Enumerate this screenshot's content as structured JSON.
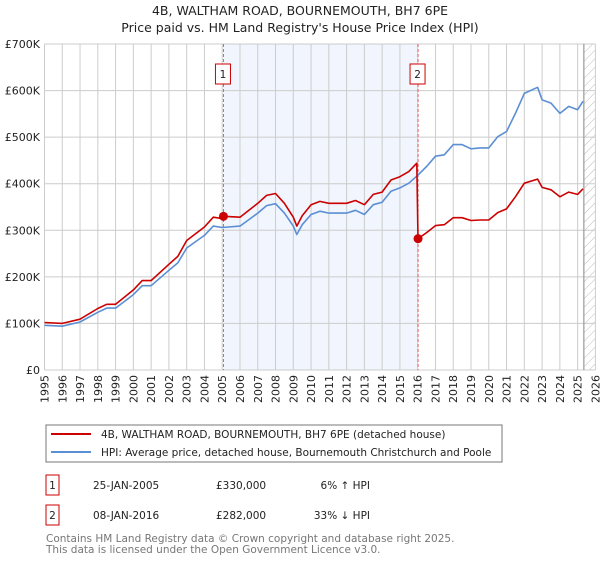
{
  "chart_data": {
    "type": "line",
    "title": "4B, WALTHAM ROAD, BOURNEMOUTH, BH7 6PE",
    "subtitle": "Price paid vs. HM Land Registry's House Price Index (HPI)",
    "xlim": [
      1995,
      2026
    ],
    "ylim": [
      0,
      700000
    ],
    "x_ticks": [
      "1995",
      "1996",
      "1997",
      "1998",
      "1999",
      "2000",
      "2001",
      "2002",
      "2003",
      "2004",
      "2005",
      "2006",
      "2007",
      "2008",
      "2009",
      "2010",
      "2011",
      "2012",
      "2013",
      "2014",
      "2015",
      "2016",
      "2017",
      "2018",
      "2019",
      "2020",
      "2021",
      "2022",
      "2023",
      "2024",
      "2025",
      "2026"
    ],
    "y_ticks": [
      {
        "value": 0,
        "label": "£0"
      },
      {
        "value": 100000,
        "label": "£100K"
      },
      {
        "value": 200000,
        "label": "£200K"
      },
      {
        "value": 300000,
        "label": "£300K"
      },
      {
        "value": 400000,
        "label": "£400K"
      },
      {
        "value": 500000,
        "label": "£500K"
      },
      {
        "value": 600000,
        "label": "£600K"
      },
      {
        "value": 700000,
        "label": "£700K"
      }
    ],
    "grid": true,
    "shaded_range": [
      2005.07,
      2016.02
    ],
    "forecast_hatch_from": 2025.35,
    "series": [
      {
        "name": "4B, WALTHAM ROAD, BOURNEMOUTH, BH7 6PE (detached house)",
        "color": "#cc0000",
        "x": [
          1995,
          1996,
          1997,
          1998,
          1998.5,
          1999,
          2000,
          2000.5,
          2001,
          2002,
          2002.5,
          2003,
          2004,
          2004.5,
          2005,
          2005.07,
          2006,
          2006.5,
          2007,
          2007.5,
          2008,
          2008.5,
          2009,
          2009.2,
          2009.5,
          2010,
          2010.5,
          2011,
          2012,
          2012.5,
          2013,
          2013.5,
          2014,
          2014.5,
          2015,
          2015.5,
          2015.95,
          2016.02,
          2016.5,
          2017,
          2017.5,
          2018,
          2018.5,
          2019,
          2019.5,
          2020,
          2020.5,
          2021,
          2021.5,
          2022,
          2022.75,
          2023,
          2023.5,
          2024,
          2024.5,
          2025,
          2025.3
        ],
        "y": [
          102000,
          100000,
          109000,
          132000,
          141000,
          141000,
          172000,
          192000,
          192000,
          227000,
          244000,
          278000,
          307000,
          328000,
          325000,
          330000,
          328000,
          343000,
          358000,
          375000,
          379000,
          358000,
          328000,
          309000,
          331000,
          355000,
          362000,
          358000,
          358000,
          364000,
          355000,
          377000,
          382000,
          408000,
          415000,
          426000,
          444000,
          282000,
          295000,
          310000,
          312000,
          327000,
          327000,
          321000,
          322000,
          322000,
          338000,
          346000,
          372000,
          401000,
          410000,
          392000,
          387000,
          372000,
          382000,
          377000,
          389000
        ]
      },
      {
        "name": "HPI: Average price, detached house, Bournemouth Christchurch and Poole",
        "color": "#5b8fd4",
        "x": [
          1995,
          1996,
          1997,
          1998,
          1998.5,
          1999,
          2000,
          2000.5,
          2001,
          2002,
          2002.5,
          2003,
          2004,
          2004.5,
          2005,
          2006,
          2006.5,
          2007,
          2007.5,
          2008,
          2008.5,
          2009,
          2009.2,
          2009.5,
          2010,
          2010.5,
          2011,
          2012,
          2012.5,
          2013,
          2013.5,
          2014,
          2014.5,
          2015,
          2015.5,
          2016,
          2016.5,
          2017,
          2017.5,
          2018,
          2018.5,
          2019,
          2019.5,
          2020,
          2020.5,
          2021,
          2021.5,
          2022,
          2022.75,
          2023,
          2023.5,
          2024,
          2024.5,
          2025,
          2025.3
        ],
        "y": [
          96000,
          94000,
          103000,
          124000,
          133000,
          133000,
          162000,
          181000,
          181000,
          214000,
          230000,
          262000,
          289000,
          309000,
          306000,
          309000,
          323000,
          337000,
          353000,
          357000,
          337000,
          309000,
          291000,
          312000,
          334000,
          341000,
          337000,
          337000,
          343000,
          334000,
          355000,
          360000,
          384000,
          391000,
          401000,
          418000,
          437000,
          459000,
          462000,
          484000,
          484000,
          475000,
          477000,
          477000,
          501000,
          512000,
          551000,
          594000,
          607000,
          580000,
          573000,
          551000,
          566000,
          559000,
          577000
        ]
      }
    ],
    "sales": [
      {
        "id": "1",
        "x": 2005.07,
        "price": 330000,
        "date": "25-JAN-2005",
        "price_label": "£330,000",
        "hpi_label": "6% ↑ HPI"
      },
      {
        "id": "2",
        "x": 2016.02,
        "price": 282000,
        "date": "08-JAN-2016",
        "price_label": "£282,000",
        "hpi_label": "33% ↓ HPI"
      }
    ],
    "legend_position": "below"
  },
  "footer": {
    "line1": "Contains HM Land Registry data © Crown copyright and database right 2025.",
    "line2": "This data is licensed under the Open Government Licence v3.0."
  }
}
